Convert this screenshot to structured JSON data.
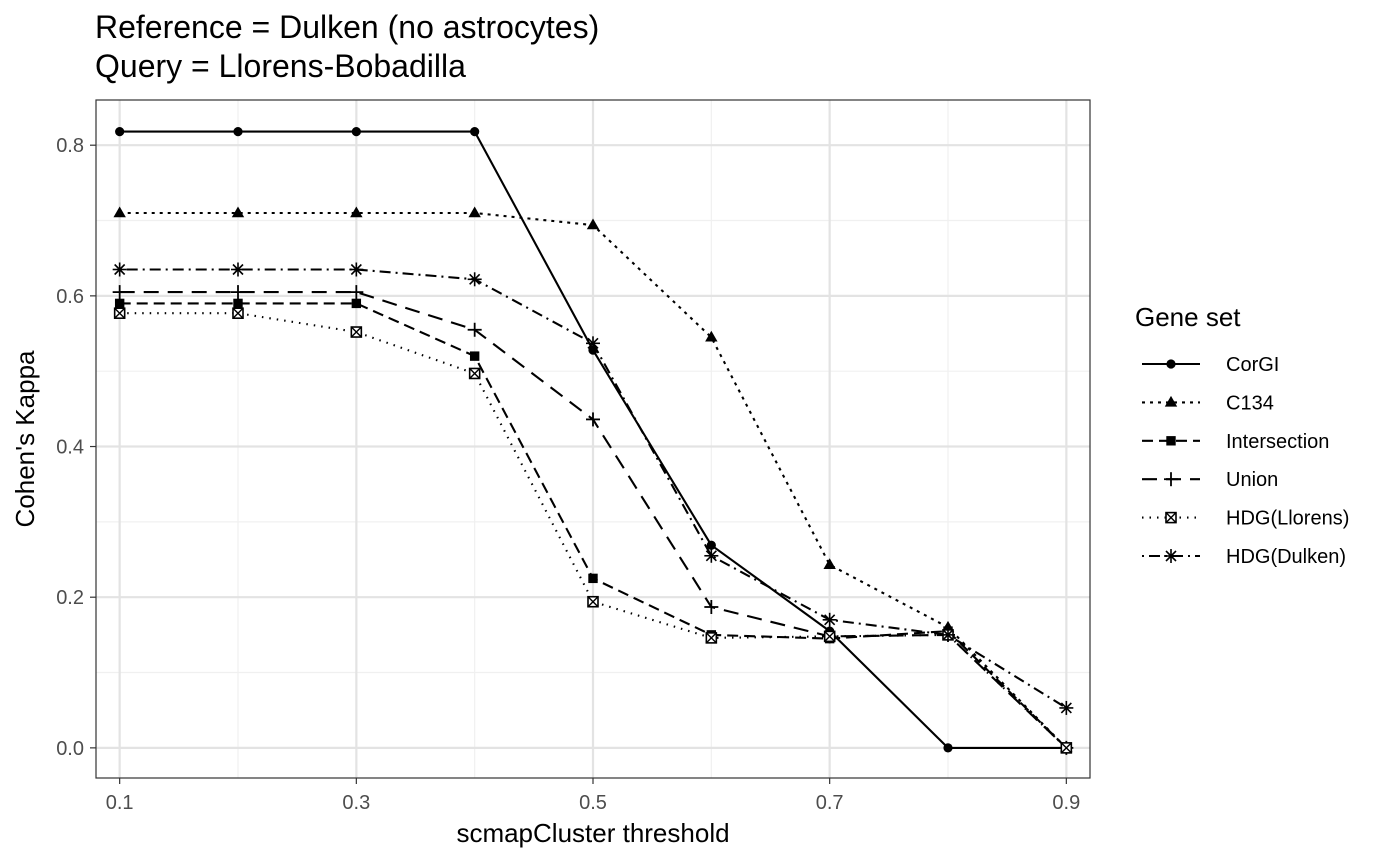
{
  "chart_data": {
    "type": "line",
    "title_lines": [
      "Reference = Dulken (no astrocytes)",
      "Query = Llorens-Bobadilla"
    ],
    "xlabel": "scmapCluster threshold",
    "ylabel": "Cohen's Kappa",
    "x": [
      0.1,
      0.2,
      0.3,
      0.4,
      0.5,
      0.6,
      0.7,
      0.8,
      0.9
    ],
    "x_tick_labels": [
      "0.1",
      "0.3",
      "0.5",
      "0.7",
      "0.9"
    ],
    "y_tick_labels": [
      "0.0",
      "0.2",
      "0.4",
      "0.6",
      "0.8"
    ],
    "xlim": [
      0.08,
      0.92
    ],
    "ylim": [
      -0.04,
      0.86
    ],
    "grid": true,
    "legend_title": "Gene set",
    "legend_position": "right",
    "series": [
      {
        "name": "CorGI",
        "marker": "circle",
        "dash": "solid",
        "values": [
          0.818,
          0.818,
          0.818,
          0.818,
          0.528,
          0.269,
          0.155,
          0.0,
          0.0
        ]
      },
      {
        "name": "C134",
        "marker": "triangle",
        "dash": "dotted",
        "values": [
          0.71,
          0.71,
          0.71,
          0.71,
          0.694,
          0.545,
          0.243,
          0.16,
          0.0
        ]
      },
      {
        "name": "Intersection",
        "marker": "square",
        "dash": "dashed",
        "values": [
          0.59,
          0.59,
          0.59,
          0.52,
          0.225,
          0.15,
          0.145,
          0.155,
          0.0
        ]
      },
      {
        "name": "Union",
        "marker": "plus",
        "dash": "longdash",
        "values": [
          0.605,
          0.605,
          0.605,
          0.555,
          0.436,
          0.187,
          0.148,
          0.15,
          0.0
        ]
      },
      {
        "name": "HDG(Llorens)",
        "marker": "boxx",
        "dash": "finedot",
        "values": [
          0.577,
          0.577,
          0.552,
          0.497,
          0.194,
          0.146,
          0.148,
          0.15,
          0.0
        ]
      },
      {
        "name": "HDG(Dulken)",
        "marker": "star",
        "dash": "dotdash",
        "values": [
          0.635,
          0.635,
          0.635,
          0.622,
          0.537,
          0.255,
          0.17,
          0.15,
          0.053
        ]
      }
    ]
  }
}
